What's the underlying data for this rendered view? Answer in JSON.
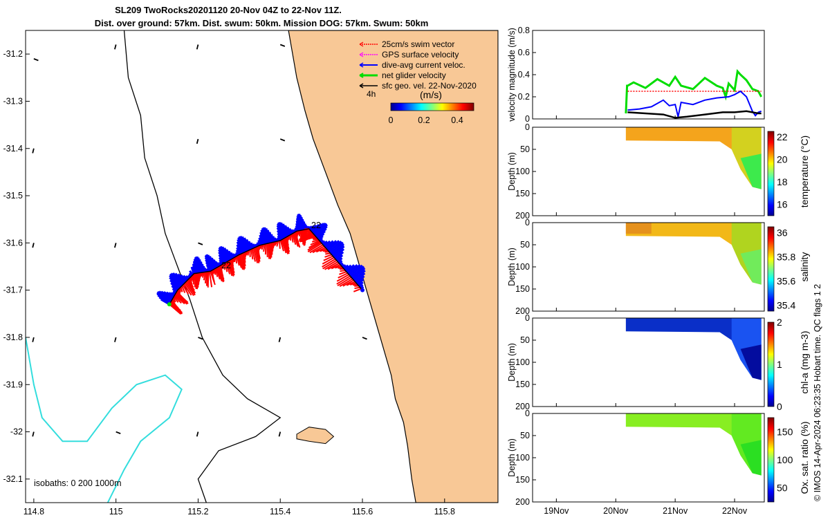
{
  "title_line1": "SL209 TwoRocks20201120 20-Nov 04Z to 22-Nov 11Z.",
  "title_line2": "Dist. over ground: 57km. Dist. swum: 50km. Mission DOG: 57km. Swum: 50km",
  "side_note": "© IMOS 14-Apr-2024 06:23:35 Hobart time. QC flags 1  2",
  "colors": {
    "land": "#f8c896",
    "swim": "#ff0000",
    "gps": "#ff00ff",
    "current": "#0000ff",
    "net": "#00dd00",
    "geo": "#000000",
    "isobath": "#33dddd"
  },
  "chart_data": [
    {
      "type": "scatter",
      "name": "map",
      "xlim": [
        114.78,
        115.93
      ],
      "ylim": [
        -32.15,
        -31.15
      ],
      "xticks": [
        "114.8",
        "115",
        "115.2",
        "115.4",
        "115.6",
        "115.8"
      ],
      "xtick_values": [
        114.8,
        115.0,
        115.2,
        115.4,
        115.6,
        115.8
      ],
      "yticks": [
        "-31.2",
        "-31.3",
        "-31.4",
        "-31.5",
        "-31.6",
        "-31.7",
        "-31.8",
        "-31.9",
        "-32",
        "-32.1"
      ],
      "ytick_values": [
        -31.2,
        -31.3,
        -31.4,
        -31.5,
        -31.6,
        -31.7,
        -31.8,
        -31.9,
        -32.0,
        -32.1
      ],
      "legend": [
        "25cm/s swim vector",
        "GPS surface velocity",
        "dive-avg current veloc.",
        "net glider velocity",
        "sfc geo. vel. 22-Nov-2020"
      ],
      "isobath_label": "isobaths: 0   200  1000m",
      "colorbar": {
        "title": "(m/s)",
        "ticks": [
          "0",
          "0.2",
          "0.4"
        ],
        "range": [
          0,
          0.5
        ]
      },
      "time_label": "4h",
      "track_labels": [
        "22",
        "22"
      ],
      "coastline": [
        [
          115.42,
          -31.15
        ],
        [
          115.44,
          -31.25
        ],
        [
          115.46,
          -31.32
        ],
        [
          115.48,
          -31.38
        ],
        [
          115.51,
          -31.45
        ],
        [
          115.54,
          -31.52
        ],
        [
          115.57,
          -31.58
        ],
        [
          115.59,
          -31.64
        ],
        [
          115.61,
          -31.7
        ],
        [
          115.63,
          -31.76
        ],
        [
          115.65,
          -31.82
        ],
        [
          115.67,
          -31.88
        ],
        [
          115.68,
          -31.93
        ],
        [
          115.7,
          -31.98
        ],
        [
          115.71,
          -32.03
        ],
        [
          115.72,
          -32.1
        ],
        [
          115.73,
          -32.15
        ]
      ],
      "track": [
        [
          115.13,
          -31.73
        ],
        [
          115.15,
          -31.7
        ],
        [
          115.19,
          -31.665
        ],
        [
          115.23,
          -31.66
        ],
        [
          115.26,
          -31.645
        ],
        [
          115.3,
          -31.625
        ],
        [
          115.35,
          -31.605
        ],
        [
          115.4,
          -31.595
        ],
        [
          115.44,
          -31.575
        ],
        [
          115.47,
          -31.57
        ],
        [
          115.5,
          -31.6
        ],
        [
          115.55,
          -31.65
        ],
        [
          115.6,
          -31.7
        ]
      ],
      "geo_arrows": [
        [
          114.8,
          -31.21
        ],
        [
          115.0,
          -31.18
        ],
        [
          115.2,
          -31.18
        ],
        [
          115.4,
          -31.18
        ],
        [
          114.8,
          -31.4
        ],
        [
          115.2,
          -31.38
        ],
        [
          115.4,
          -31.38
        ],
        [
          114.8,
          -31.6
        ],
        [
          115.0,
          -31.6
        ],
        [
          115.2,
          -31.6
        ],
        [
          114.8,
          -31.8
        ],
        [
          115.0,
          -31.8
        ],
        [
          115.2,
          -31.8
        ],
        [
          115.4,
          -31.8
        ],
        [
          114.8,
          -32.0
        ],
        [
          115.0,
          -32.0
        ],
        [
          115.2,
          -32.0
        ],
        [
          115.4,
          -32.0
        ],
        [
          115.6,
          -31.8
        ]
      ]
    },
    {
      "type": "line",
      "name": "velocity",
      "ylabel": "velocity magnitude (m/s)",
      "ylim": [
        0,
        0.8
      ],
      "yticks": [
        "0",
        "0.2",
        "0.4",
        "0.6",
        "0.8"
      ],
      "ytick_values": [
        0,
        0.2,
        0.4,
        0.6,
        0.8
      ],
      "xlim": [
        18.6,
        22.5
      ],
      "series": [
        {
          "name": "net",
          "color": "#00dd00",
          "x": [
            20.17,
            20.19,
            20.2,
            20.3,
            20.5,
            20.7,
            20.9,
            21.0,
            21.1,
            21.3,
            21.5,
            21.7,
            21.8,
            21.85,
            21.9,
            22.0,
            22.05,
            22.1,
            22.2,
            22.3,
            22.4,
            22.45
          ],
          "y": [
            0.05,
            0.3,
            0.3,
            0.33,
            0.28,
            0.36,
            0.3,
            0.38,
            0.3,
            0.27,
            0.37,
            0.3,
            0.28,
            0.2,
            0.32,
            0.26,
            0.43,
            0.4,
            0.35,
            0.27,
            0.25,
            0.2
          ]
        },
        {
          "name": "swim",
          "color": "#ff0000",
          "x": [
            20.2,
            22.45
          ],
          "y": [
            0.25,
            0.25
          ]
        },
        {
          "name": "current",
          "color": "#0000ff",
          "x": [
            20.2,
            20.4,
            20.6,
            20.8,
            20.9,
            21.0,
            21.05,
            21.1,
            21.3,
            21.5,
            21.7,
            21.9,
            22.0,
            22.1,
            22.2,
            22.3,
            22.35,
            22.4,
            22.45
          ],
          "y": [
            0.08,
            0.09,
            0.11,
            0.17,
            0.12,
            0.13,
            0.02,
            0.15,
            0.13,
            0.17,
            0.19,
            0.2,
            0.22,
            0.25,
            0.2,
            0.07,
            0.03,
            0.06,
            0.07
          ]
        },
        {
          "name": "geo",
          "color": "#000000",
          "x": [
            20.2,
            20.5,
            20.8,
            21.0,
            21.2,
            21.5,
            21.8,
            22.0,
            22.2,
            22.4,
            22.45
          ],
          "y": [
            0.06,
            0.05,
            0.04,
            0.01,
            0.02,
            0.04,
            0.06,
            0.06,
            0.07,
            0.05,
            0.05
          ]
        }
      ]
    },
    {
      "type": "heatmap",
      "name": "temperature",
      "ylabel": "Depth (m)",
      "cbar_label": "temperature (°C)",
      "yticks": [
        "0",
        "50",
        "100",
        "150",
        "200"
      ],
      "ytick_values": [
        0,
        50,
        100,
        150,
        200
      ],
      "cbar_ticks": [
        "16",
        "18",
        "20",
        "22"
      ],
      "cbar_tick_values": [
        16,
        18,
        20,
        22
      ],
      "cbar_range": [
        15,
        22.5
      ],
      "colormap": "jet",
      "values": {
        "surface": 21.2,
        "mid": 20.8,
        "deep": 16.5
      }
    },
    {
      "type": "heatmap",
      "name": "salinity",
      "ylabel": "Depth (m)",
      "cbar_label": "salinity",
      "yticks": [
        "0",
        "50",
        "100",
        "150",
        "200"
      ],
      "ytick_values": [
        0,
        50,
        100,
        150,
        200
      ],
      "cbar_ticks": [
        "35.4",
        "35.6",
        "35.8",
        "36"
      ],
      "cbar_tick_values": [
        35.4,
        35.6,
        35.8,
        36.0
      ],
      "cbar_range": [
        35.35,
        36.05
      ],
      "colormap": "jet",
      "values": {
        "west": 35.95,
        "east": 35.65,
        "deep": 35.5
      }
    },
    {
      "type": "heatmap",
      "name": "chl-a",
      "ylabel": "Depth (m)",
      "cbar_label": "chl-a (mg m-3)",
      "yticks": [
        "0",
        "50",
        "100",
        "150",
        "200"
      ],
      "ytick_values": [
        0,
        50,
        100,
        150,
        200
      ],
      "cbar_ticks": [
        "0",
        "1",
        "2"
      ],
      "cbar_tick_values": [
        0,
        1,
        2
      ],
      "cbar_range": [
        0,
        2
      ],
      "colormap": "jet",
      "values": {
        "surface": 0.2,
        "deep": 0.6
      }
    },
    {
      "type": "heatmap",
      "name": "oxygen",
      "ylabel": "Depth (m)",
      "cbar_label": "Ox. sat. ratio (%)",
      "yticks": [
        "0",
        "50",
        "100",
        "150",
        "200"
      ],
      "ytick_values": [
        0,
        50,
        100,
        150,
        200
      ],
      "cbar_ticks": [
        "50",
        "100",
        "150"
      ],
      "cbar_tick_values": [
        50,
        100,
        150
      ],
      "cbar_range": [
        25,
        175
      ],
      "colormap": "jet",
      "values": {
        "surface": 105,
        "deep": 95
      },
      "xticks": [
        "19Nov",
        "20Nov",
        "21Nov",
        "22Nov"
      ],
      "xtick_values": [
        19,
        20,
        21,
        22
      ]
    }
  ]
}
